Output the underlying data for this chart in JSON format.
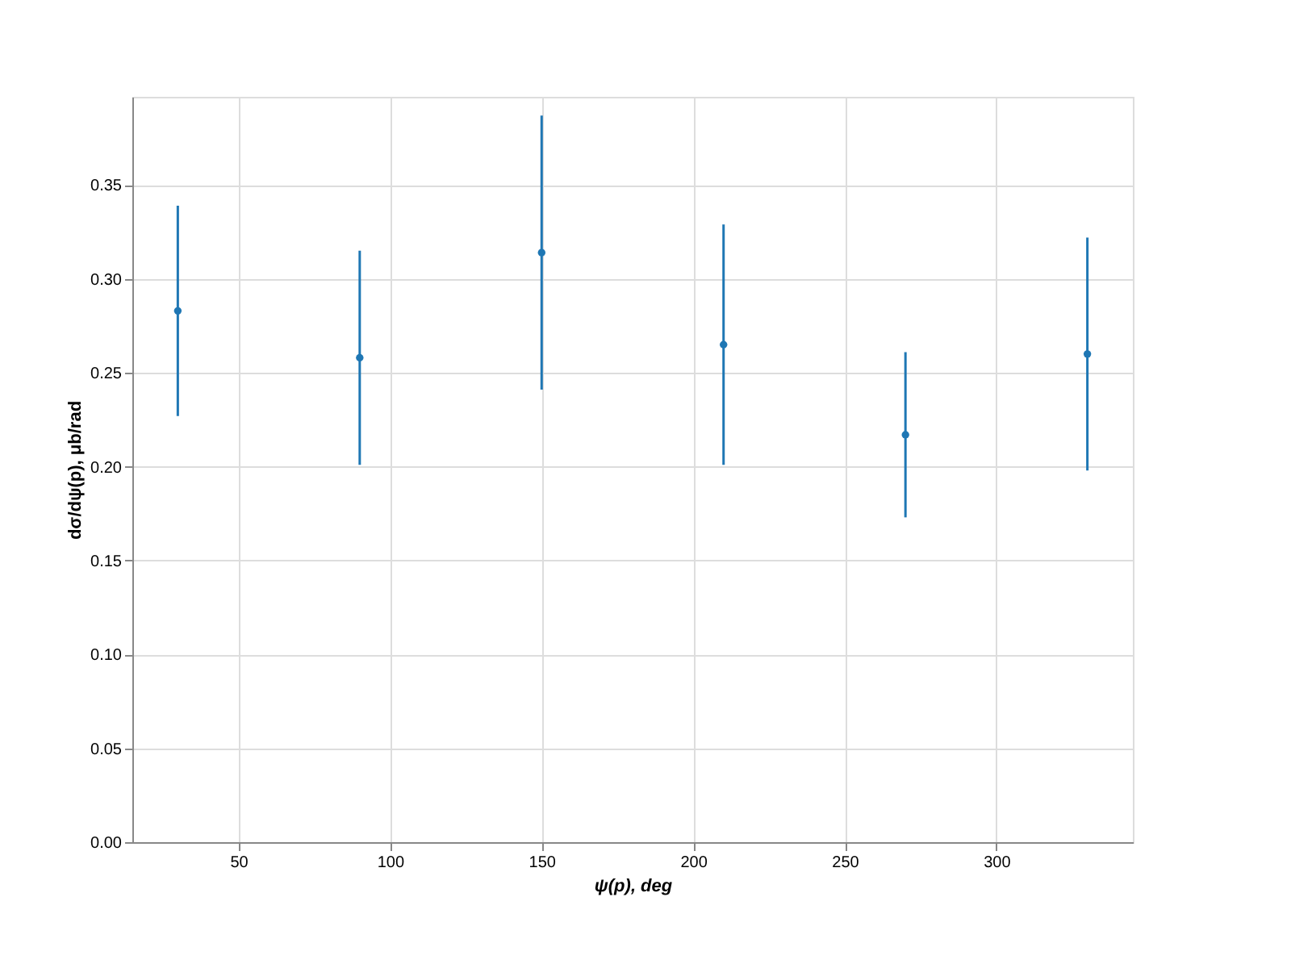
{
  "chart_data": {
    "type": "scatter",
    "xlabel": "ψ(p), deg",
    "ylabel": "dσ/dψ(p), μb/rad",
    "x": [
      30,
      90,
      150,
      210,
      270,
      330
    ],
    "series": [
      {
        "color": "#1f77b4",
        "values": [
          0.283,
          0.258,
          0.314,
          0.265,
          0.217,
          0.26
        ],
        "errors": [
          0.056,
          0.057,
          0.073,
          0.064,
          0.044,
          0.062
        ]
      }
    ],
    "xlim": [
      15,
      345
    ],
    "xticks": [
      50,
      100,
      150,
      200,
      250,
      300
    ],
    "ylim": [
      0,
      0.397
    ],
    "yticks": [
      {
        "value": 0,
        "label": "0.00"
      },
      0.05,
      {
        "value": 0.1,
        "label": "0.10"
      },
      0.15,
      {
        "value": 0.2,
        "label": "0.20"
      },
      0.25,
      {
        "value": 0.3,
        "label": "0.30"
      },
      0.35
    ],
    "grid": true,
    "marker": "circle"
  }
}
